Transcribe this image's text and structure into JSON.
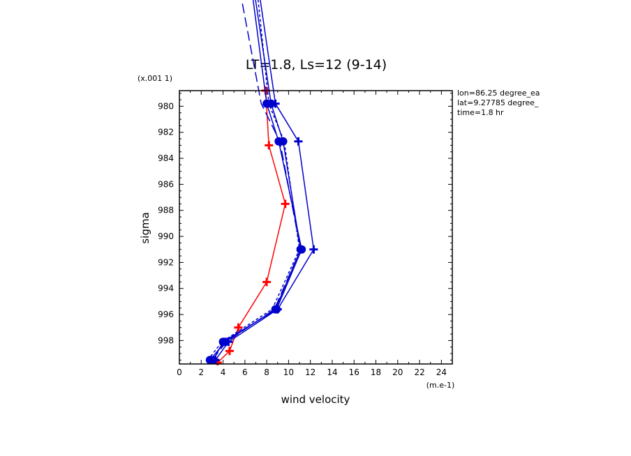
{
  "chart_data": {
    "type": "line",
    "title": "LT=1.8, Ls=12 (9-14)",
    "xlabel": "wind velocity",
    "ylabel": "sigma",
    "x_unit": "(m.e-1)",
    "y_scale_note": "(x.001 1)",
    "xlim": [
      0,
      25
    ],
    "ylim": [
      999.8,
      978.8
    ],
    "x_ticks": [
      0,
      2,
      4,
      6,
      8,
      10,
      12,
      14,
      16,
      18,
      20,
      22,
      24
    ],
    "y_ticks": [
      980,
      982,
      984,
      986,
      988,
      990,
      992,
      994,
      996,
      998
    ],
    "info": [
      "lon=86.25 degree_ea",
      "lat=9.27785 degree_",
      "time=1.8 hr"
    ],
    "colors": {
      "red": "#ff0000",
      "blue": "#0000cc"
    },
    "series": [
      {
        "color": "#ff0000",
        "dash": "solid",
        "marker": "plus",
        "points": [
          [
            3.5,
            999.7
          ],
          [
            4.6,
            998.8
          ],
          [
            5.4,
            997.0
          ],
          [
            8.0,
            993.5
          ],
          [
            9.7,
            987.5
          ],
          [
            8.2,
            983.0
          ],
          [
            7.9,
            978.8
          ]
        ]
      },
      {
        "color": "#0000cc",
        "dash": "solid",
        "marker": "circle",
        "points": [
          [
            2.8,
            999.5
          ],
          [
            4.2,
            998.1
          ],
          [
            8.8,
            995.6
          ],
          [
            11.1,
            991.0
          ],
          [
            9.5,
            982.7
          ],
          [
            8.4,
            979.8
          ],
          [
            4.5,
            958.0
          ]
        ]
      },
      {
        "color": "#0000cc",
        "dash": "solid",
        "marker": "circle",
        "points": [
          [
            3.1,
            999.5
          ],
          [
            4.0,
            998.1
          ],
          [
            8.9,
            995.6
          ],
          [
            11.2,
            991.0
          ],
          [
            9.1,
            982.7
          ],
          [
            8.0,
            979.8
          ],
          [
            4.6,
            958.0
          ]
        ]
      },
      {
        "color": "#0000cc",
        "dash": "solid",
        "marker": "plus",
        "points": [
          [
            3.3,
            999.5
          ],
          [
            4.5,
            998.1
          ],
          [
            9.0,
            995.6
          ],
          [
            12.3,
            991.0
          ],
          [
            10.9,
            982.7
          ],
          [
            8.8,
            979.8
          ],
          [
            5.0,
            958.0
          ]
        ]
      },
      {
        "color": "#0000cc",
        "dash": "dashed",
        "marker": "none",
        "points": [
          [
            2.6,
            999.5
          ],
          [
            3.9,
            998.1
          ],
          [
            8.5,
            995.6
          ],
          [
            11.0,
            991.0
          ],
          [
            9.6,
            982.7
          ],
          [
            8.2,
            979.8
          ],
          [
            6.0,
            962.0
          ]
        ]
      },
      {
        "color": "#0000cc",
        "dash": "longdash",
        "marker": "none",
        "points": [
          [
            3.0,
            999.5
          ],
          [
            4.3,
            998.1
          ],
          [
            8.7,
            995.6
          ],
          [
            11.1,
            991.0
          ],
          [
            9.2,
            982.7
          ],
          [
            7.5,
            979.8
          ],
          [
            3.5,
            962.0
          ]
        ]
      }
    ]
  }
}
